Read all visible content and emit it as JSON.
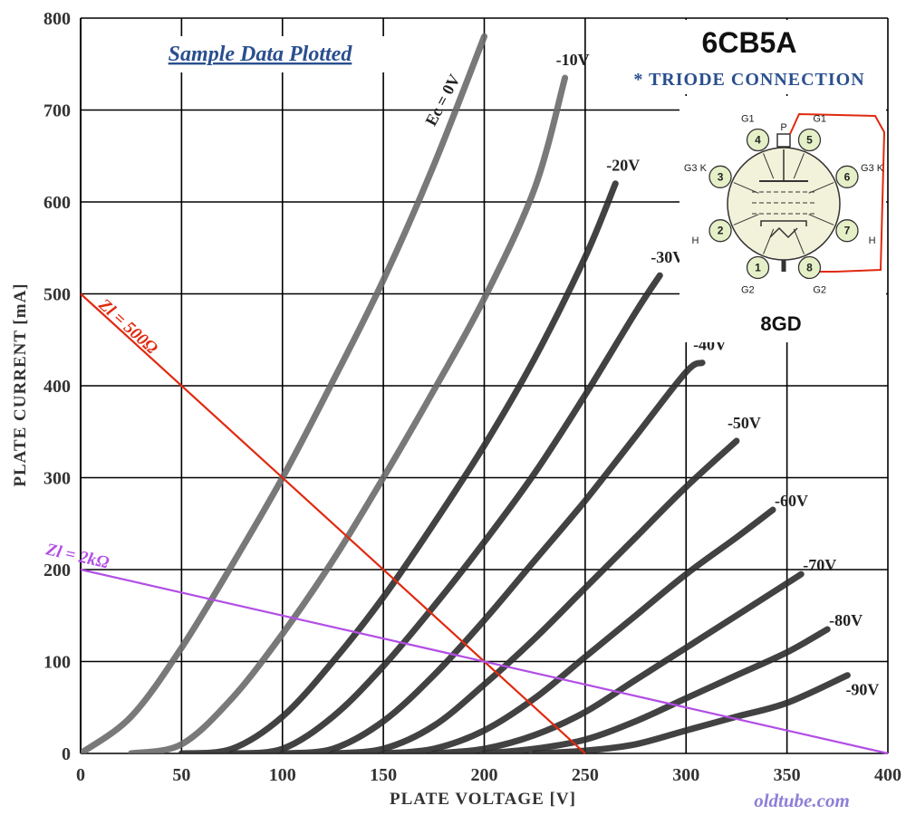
{
  "chart_data": {
    "type": "line",
    "title": "6CB5A",
    "subtitle": "* TRIODE CONNECTION",
    "note": "Sample Data Plotted",
    "credit": "oldtube.com",
    "xlabel": "PLATE VOLTAGE [V]",
    "ylabel": "PLATE CURRENT [mA]",
    "xlim": [
      0,
      400
    ],
    "ylim": [
      0,
      800
    ],
    "xticks": [
      "0",
      "50",
      "100",
      "150",
      "200",
      "250",
      "300",
      "350",
      "400"
    ],
    "yticks": [
      "0",
      "100",
      "200",
      "300",
      "400",
      "500",
      "600",
      "700",
      "800"
    ],
    "grid": true,
    "series": [
      {
        "name": "Ec = 0V",
        "x": [
          0,
          25,
          50,
          75,
          100,
          125,
          150,
          175,
          200
        ],
        "y": [
          0,
          40,
          115,
          205,
          300,
          405,
          515,
          640,
          780
        ]
      },
      {
        "name": "-10V",
        "x": [
          25,
          50,
          75,
          100,
          125,
          150,
          175,
          200,
          225,
          240
        ],
        "y": [
          0,
          10,
          60,
          130,
          210,
          300,
          395,
          495,
          615,
          735
        ]
      },
      {
        "name": "-20V",
        "x": [
          50,
          75,
          100,
          125,
          150,
          175,
          200,
          225,
          250,
          265
        ],
        "y": [
          0,
          5,
          40,
          100,
          170,
          250,
          335,
          430,
          540,
          620
        ]
      },
      {
        "name": "-30V",
        "x": [
          75,
          100,
          125,
          150,
          175,
          200,
          225,
          250,
          275,
          287
        ],
        "y": [
          0,
          5,
          40,
          95,
          160,
          230,
          305,
          390,
          480,
          520
        ]
      },
      {
        "name": "-40V",
        "x": [
          100,
          125,
          150,
          175,
          200,
          225,
          250,
          275,
          300,
          308
        ],
        "y": [
          0,
          5,
          35,
          85,
          145,
          210,
          275,
          345,
          415,
          425
        ]
      },
      {
        "name": "-50V",
        "x": [
          125,
          150,
          175,
          200,
          225,
          250,
          275,
          300,
          325
        ],
        "y": [
          0,
          5,
          30,
          75,
          125,
          180,
          235,
          290,
          340
        ]
      },
      {
        "name": "-60V",
        "x": [
          150,
          175,
          200,
          225,
          250,
          275,
          300,
          325,
          343
        ],
        "y": [
          0,
          5,
          25,
          60,
          105,
          150,
          195,
          235,
          265
        ]
      },
      {
        "name": "-70V",
        "x": [
          175,
          200,
          225,
          250,
          275,
          300,
          325,
          350,
          357
        ],
        "y": [
          0,
          5,
          20,
          45,
          80,
          115,
          150,
          185,
          195
        ]
      },
      {
        "name": "-80V",
        "x": [
          200,
          225,
          250,
          275,
          300,
          325,
          350,
          370
        ],
        "y": [
          0,
          5,
          15,
          35,
          60,
          85,
          110,
          135
        ]
      },
      {
        "name": "-90V",
        "x": [
          225,
          250,
          275,
          300,
          325,
          350,
          380
        ],
        "y": [
          0,
          3,
          10,
          25,
          40,
          55,
          85
        ]
      }
    ],
    "load_lines": [
      {
        "name": "Zl = 500Ω",
        "x": [
          0,
          250
        ],
        "y": [
          500,
          0
        ],
        "color": "#e02a10"
      },
      {
        "name": "Zl = 2kΩ",
        "x": [
          0,
          400
        ],
        "y": [
          200,
          0
        ],
        "color": "#b24ee6"
      }
    ],
    "curve_labels": [
      "Ec = 0V",
      "-10V",
      "-20V",
      "-30V",
      "-40V",
      "-50V",
      "-60V",
      "-70V",
      "-80V",
      "-90V"
    ]
  },
  "diagram": {
    "base_name": "8GD",
    "pins": [
      {
        "num": "1",
        "label": "G2"
      },
      {
        "num": "2",
        "label": "H"
      },
      {
        "num": "3",
        "label": "G3 K"
      },
      {
        "num": "4",
        "label": "G1"
      },
      {
        "num": "5",
        "label": "G1"
      },
      {
        "num": "6",
        "label": "G3 K"
      },
      {
        "num": "7",
        "label": "H"
      },
      {
        "num": "8",
        "label": "G2"
      }
    ],
    "top_cap": "P",
    "strap_color": "#e02a10"
  },
  "colors": {
    "curve": "#3a3a3a",
    "grid": "#000000",
    "load_500": "#e02a10",
    "load_2k": "#b24ee6"
  }
}
